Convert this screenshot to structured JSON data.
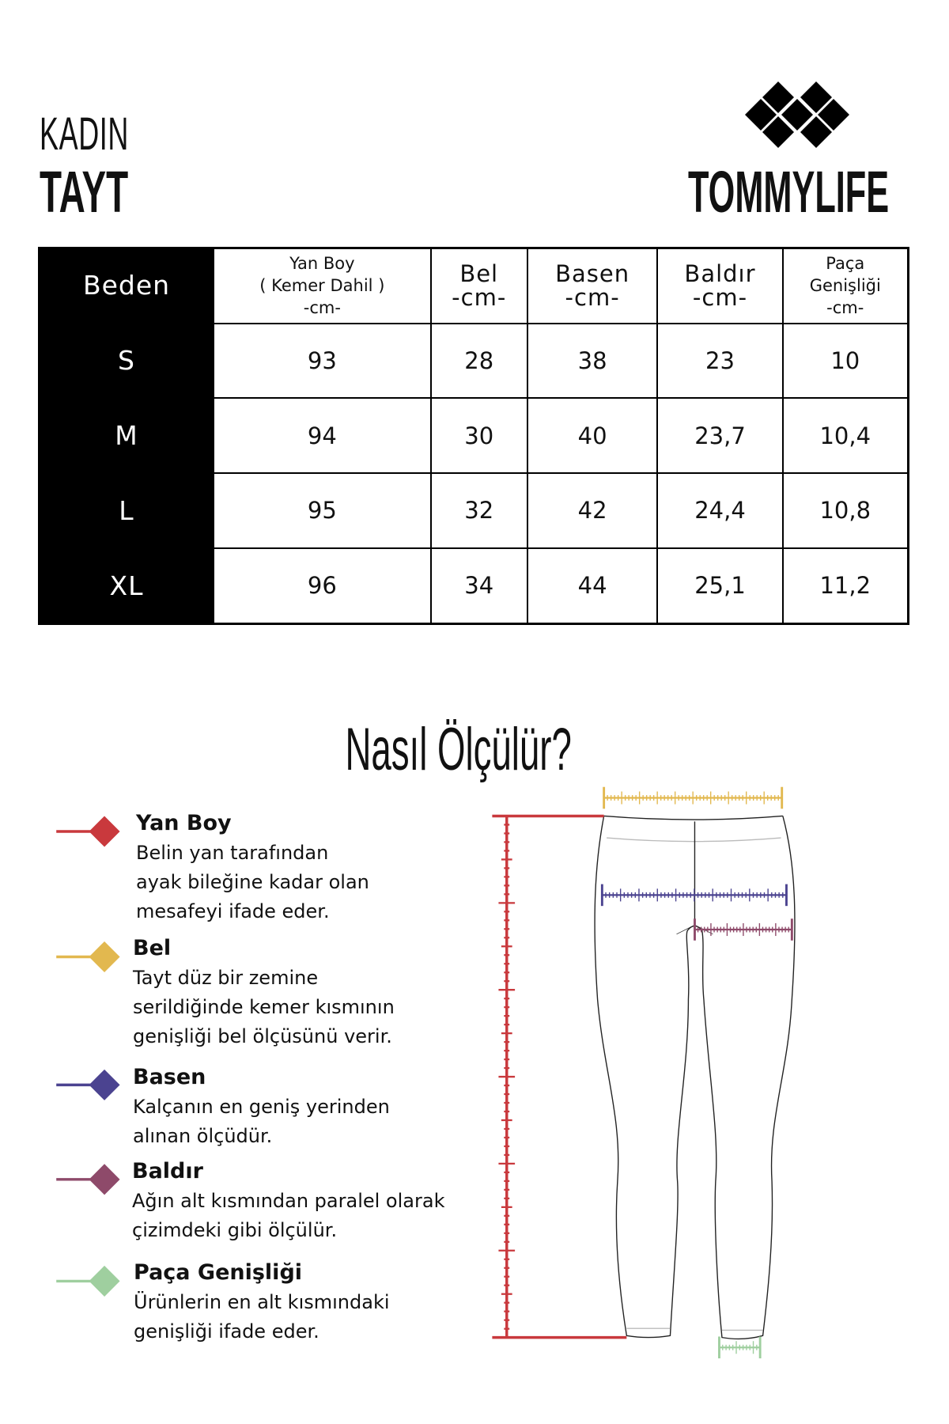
{
  "header": {
    "category": "KADIN",
    "product": "TAYT",
    "brand": "TOMMYLIFE"
  },
  "table": {
    "size_header": "Beden",
    "columns": [
      {
        "lines": [
          "Yan Boy",
          "( Kemer Dahil )",
          "-cm-"
        ]
      },
      {
        "lines": [
          "Bel",
          "-cm-"
        ]
      },
      {
        "lines": [
          "Basen",
          "-cm-"
        ]
      },
      {
        "lines": [
          "Baldır",
          "-cm-"
        ]
      },
      {
        "lines": [
          "Paça",
          "Genişliği",
          "-cm-"
        ]
      }
    ],
    "rows": [
      {
        "size": "S",
        "values": [
          "93",
          "28",
          "38",
          "23",
          "10"
        ]
      },
      {
        "size": "M",
        "values": [
          "94",
          "30",
          "40",
          "23,7",
          "10,4"
        ]
      },
      {
        "size": "L",
        "values": [
          "95",
          "32",
          "42",
          "24,4",
          "10,8"
        ]
      },
      {
        "size": "XL",
        "values": [
          "96",
          "34",
          "44",
          "25,1",
          "11,2"
        ]
      }
    ]
  },
  "guide": {
    "title": "Nasıl Ölçülür?",
    "items": [
      {
        "title": "Yan Boy",
        "lines": [
          "Belin yan tarafından",
          "ayak bileğine kadar olan",
          "mesafeyi ifade eder."
        ],
        "color": "#c9393d"
      },
      {
        "title": "Bel",
        "lines": [
          "Tayt düz bir zemine",
          "serildiğinde kemer kısmının",
          "genişliği bel ölçüsünü verir."
        ],
        "color": "#e2b84f"
      },
      {
        "title": "Basen",
        "lines": [
          "Kalçanın en geniş yerinden",
          "alınan ölçüdür."
        ],
        "color": "#4b4390"
      },
      {
        "title": "Baldır",
        "lines": [
          "Ağın alt kısmından paralel olarak",
          "çizimdeki gibi ölçülür."
        ],
        "color": "#8e4a6a"
      },
      {
        "title": "Paça Genişliği",
        "lines": [
          "Ürünlerin en alt kısmındaki",
          "genişliği ifade eder."
        ],
        "color": "#9fcf9f"
      }
    ]
  }
}
